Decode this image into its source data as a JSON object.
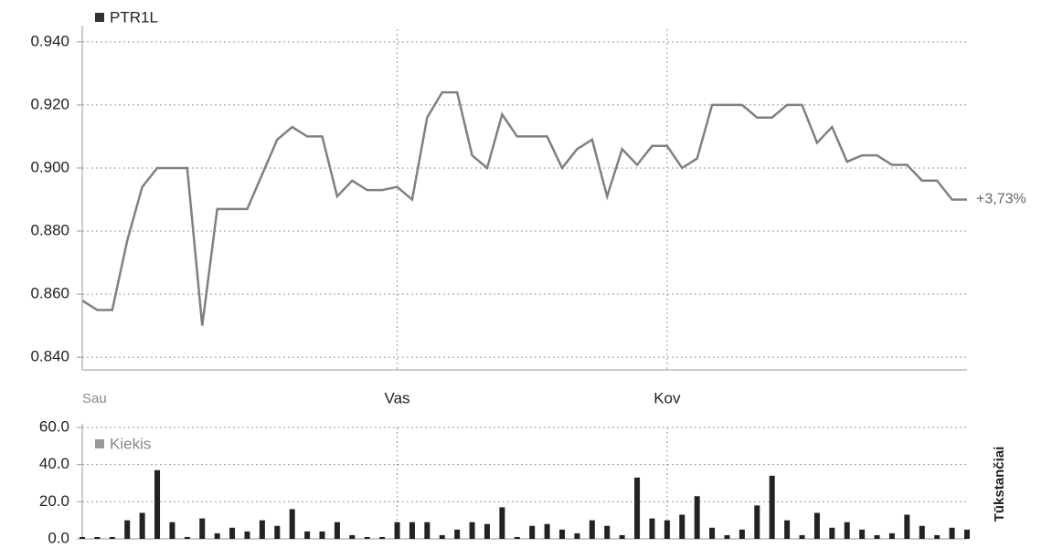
{
  "chart_data": [
    {
      "type": "line",
      "categories": [
        "Sau",
        null,
        null,
        null,
        null,
        null,
        null,
        null,
        null,
        null,
        null,
        null,
        null,
        null,
        null,
        null,
        null,
        null,
        null,
        null,
        null,
        "Vas",
        null,
        null,
        null,
        null,
        null,
        null,
        null,
        null,
        null,
        null,
        null,
        null,
        null,
        null,
        null,
        null,
        null,
        "Kov",
        null,
        null,
        null,
        null,
        null,
        null,
        null,
        null,
        null,
        null,
        null,
        null,
        null,
        null,
        null,
        null,
        null,
        null,
        null,
        null
      ],
      "series": [
        {
          "name": "PTR1L",
          "color": "#808080",
          "values": [
            0.858,
            0.855,
            0.855,
            0.877,
            0.894,
            0.9,
            0.9,
            0.9,
            0.85,
            0.887,
            0.887,
            0.887,
            0.898,
            0.909,
            0.913,
            0.91,
            0.91,
            0.891,
            0.896,
            0.893,
            0.893,
            0.894,
            0.89,
            0.916,
            0.924,
            0.924,
            0.904,
            0.9,
            0.917,
            0.91,
            0.91,
            0.91,
            0.9,
            0.906,
            0.909,
            0.891,
            0.906,
            0.901,
            0.907,
            0.907,
            0.9,
            0.903,
            0.92,
            0.92,
            0.92,
            0.916,
            0.916,
            0.92,
            0.92,
            0.908,
            0.913,
            0.902,
            0.904,
            0.904,
            0.901,
            0.901,
            0.896,
            0.896,
            0.89,
            0.89
          ]
        }
      ],
      "annotation": "+3,73%",
      "ylim": [
        0.836,
        0.944
      ],
      "yticks": [
        {
          "value": 0.84,
          "label": "0.840"
        },
        {
          "value": 0.86,
          "label": "0.860"
        },
        {
          "value": 0.88,
          "label": "0.880"
        },
        {
          "value": 0.9,
          "label": "0.900"
        },
        {
          "value": 0.92,
          "label": "0.920"
        },
        {
          "value": 0.94,
          "label": "0.940"
        }
      ],
      "grid": true
    },
    {
      "type": "bar",
      "y_label": "Tūkstančiai",
      "series": [
        {
          "name": "Kiekis",
          "color": "#222222",
          "values": [
            1,
            1,
            1,
            10,
            14,
            37,
            9,
            1,
            11,
            3,
            6,
            4,
            10,
            7,
            16,
            4,
            4,
            9,
            2,
            1,
            1,
            9,
            9,
            9,
            2,
            5,
            9,
            8,
            17,
            1,
            7,
            8,
            5,
            3,
            10,
            7,
            2,
            33,
            11,
            10,
            13,
            23,
            6,
            2,
            5,
            18,
            34,
            10,
            2,
            14,
            6,
            9,
            5,
            2,
            3,
            13,
            7,
            2,
            6,
            5
          ]
        }
      ],
      "ylim": [
        0,
        60
      ],
      "yticks": [
        {
          "value": 0,
          "label": "0.0"
        },
        {
          "value": 20,
          "label": "20.0"
        },
        {
          "value": 40,
          "label": "40.0"
        },
        {
          "value": 60,
          "label": "60.0"
        }
      ],
      "grid": true
    }
  ]
}
